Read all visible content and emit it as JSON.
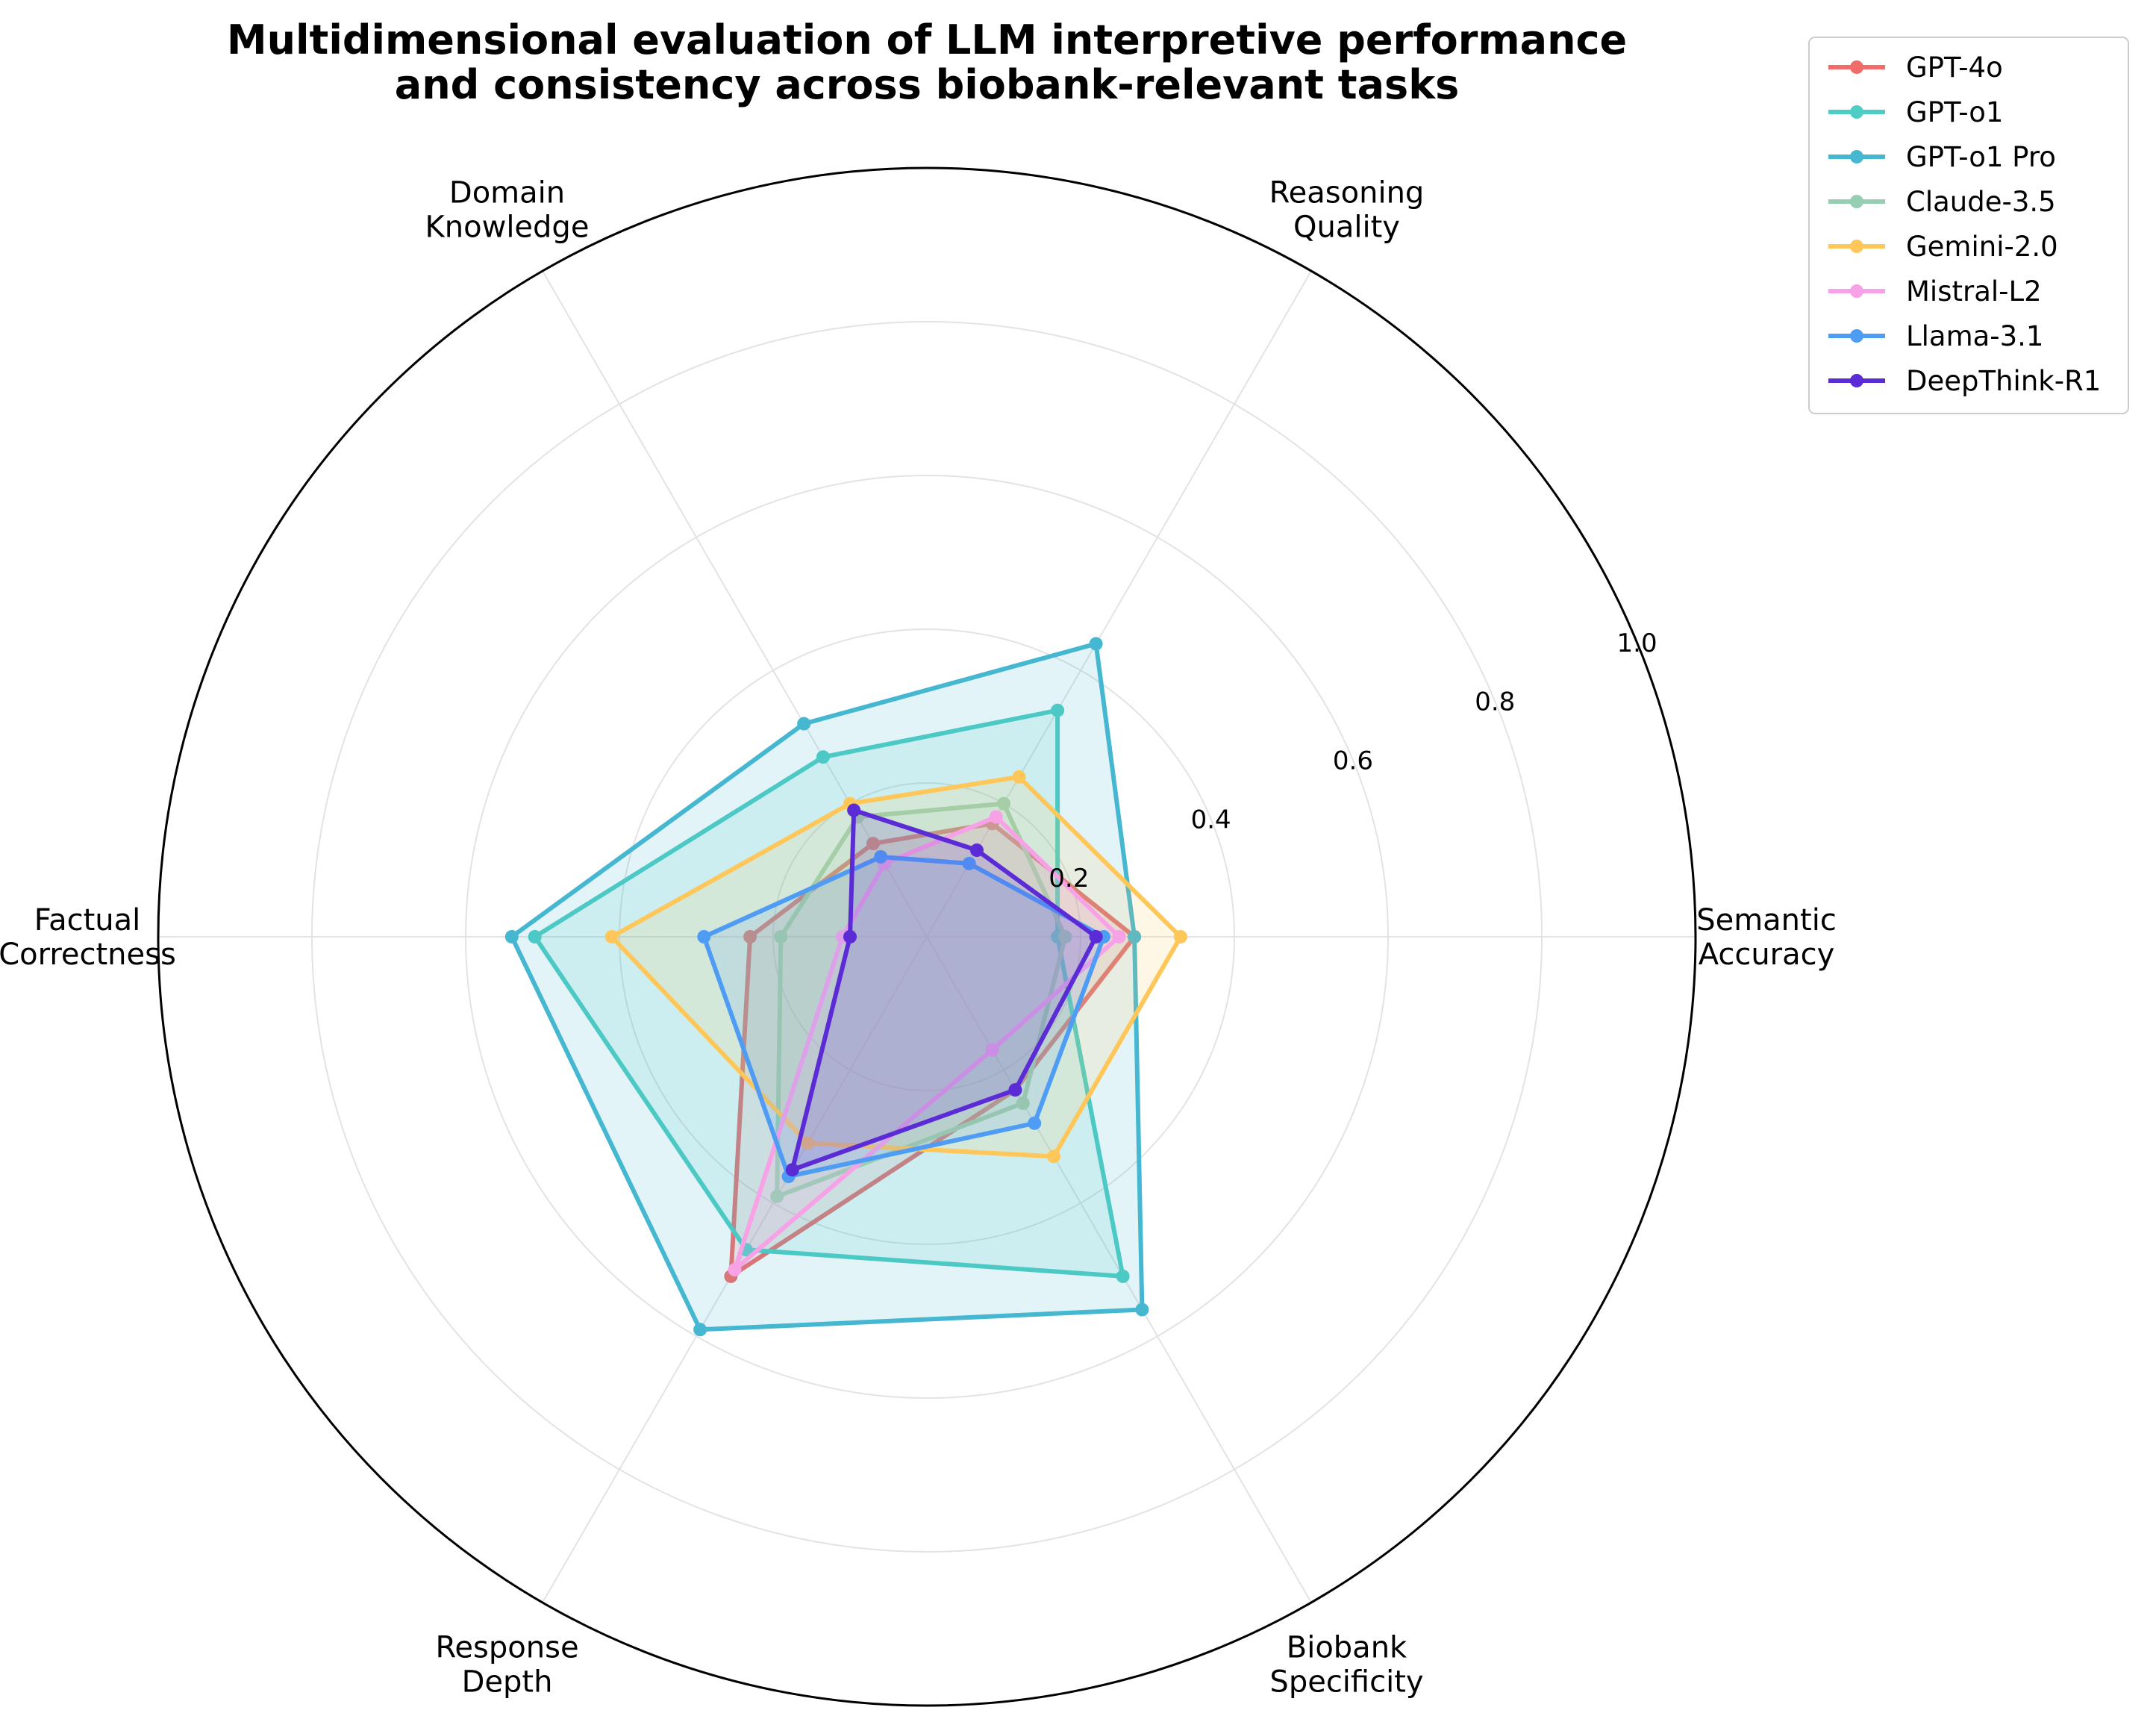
{
  "chart_data": {
    "type": "radar",
    "title": "Multidimensional evaluation of LLM interpretive performance\nand consistency across biobank-relevant tasks",
    "axes": [
      "Semantic\nAccuracy",
      "Reasoning\nQuality",
      "Domain\nKnowledge",
      "Factual\nCorrectness",
      "Response\nDepth",
      "Biobank\nSpecificity"
    ],
    "rlim": [
      0,
      1.0
    ],
    "rticks": [
      "0.2",
      "0.4",
      "0.6",
      "0.8",
      "1.0"
    ],
    "rtick_values": [
      0.2,
      0.4,
      0.6,
      0.8,
      1.0
    ],
    "grid": true,
    "legend_position": "top-right",
    "series": [
      {
        "name": "GPT-4o",
        "color": "#f26b6b",
        "values": [
          0.27,
          0.17,
          0.14,
          0.23,
          0.51,
          0.23
        ]
      },
      {
        "name": "GPT-o1",
        "color": "#4ecdc4",
        "values": [
          0.17,
          0.34,
          0.27,
          0.51,
          0.47,
          0.51
        ]
      },
      {
        "name": "GPT-o1 Pro",
        "color": "#45b7d1",
        "values": [
          0.27,
          0.44,
          0.32,
          0.54,
          0.59,
          0.56
        ]
      },
      {
        "name": "Claude-3.5",
        "color": "#96ceb4",
        "values": [
          0.18,
          0.2,
          0.18,
          0.19,
          0.39,
          0.25
        ]
      },
      {
        "name": "Gemini-2.0",
        "color": "#ffc75a",
        "values": [
          0.33,
          0.24,
          0.2,
          0.41,
          0.31,
          0.33
        ]
      },
      {
        "name": "Mistral-L2",
        "color": "#f7a1e6",
        "values": [
          0.25,
          0.18,
          0.11,
          0.11,
          0.5,
          0.17
        ]
      },
      {
        "name": "Llama-3.1",
        "color": "#4f9cf5",
        "values": [
          0.23,
          0.11,
          0.12,
          0.29,
          0.36,
          0.28
        ]
      },
      {
        "name": "DeepThink-R1",
        "color": "#5b2bd6",
        "values": [
          0.22,
          0.13,
          0.19,
          0.1,
          0.35,
          0.23
        ]
      }
    ]
  }
}
